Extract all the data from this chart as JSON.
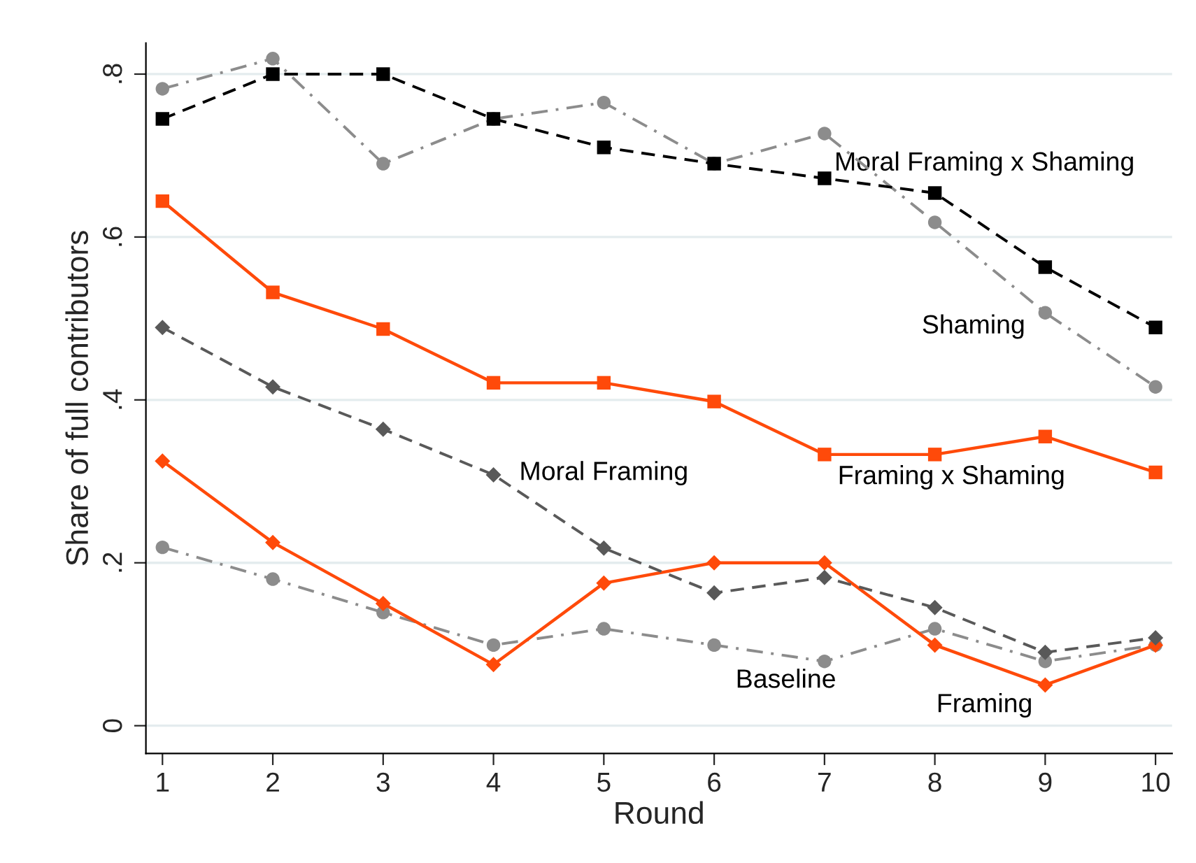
{
  "chart_data": {
    "type": "line",
    "xlabel": "Round",
    "ylabel": "Share of full contributors",
    "x": [
      1,
      2,
      3,
      4,
      5,
      6,
      7,
      8,
      9,
      10
    ],
    "xlim": [
      0.85,
      10.15
    ],
    "xticks": [
      1,
      2,
      3,
      4,
      5,
      6,
      7,
      8,
      9,
      10
    ],
    "ylim": [
      -0.034,
      0.838
    ],
    "yticks": [
      {
        "value": 0,
        "label": "0"
      },
      {
        "value": 0.2,
        "label": ".2"
      },
      {
        "value": 0.4,
        "label": ".4"
      },
      {
        "value": 0.6,
        "label": ".6"
      },
      {
        "value": 0.8,
        "label": ".8"
      }
    ],
    "grid": "y",
    "legend": false,
    "series": [
      {
        "name": "Moral Framing x Shaming",
        "color": "#000000",
        "marker": "square",
        "line_style": "dashed",
        "values": [
          0.745,
          0.8,
          0.8,
          0.745,
          0.71,
          0.69,
          0.672,
          0.654,
          0.563,
          0.489
        ]
      },
      {
        "name": "Shaming",
        "color": "#8c8c8c",
        "marker": "circle",
        "line_style": "dashdot",
        "values": [
          0.782,
          0.819,
          0.69,
          0.745,
          0.765,
          0.69,
          0.727,
          0.618,
          0.507,
          0.416
        ]
      },
      {
        "name": "Framing x Shaming",
        "color": "#ff4a0a",
        "marker": "square",
        "line_style": "solid",
        "values": [
          0.644,
          0.532,
          0.487,
          0.421,
          0.421,
          0.398,
          0.333,
          0.333,
          0.355,
          0.311
        ]
      },
      {
        "name": "Moral Framing",
        "color": "#595959",
        "marker": "diamond",
        "line_style": "dashed",
        "values": [
          0.489,
          0.416,
          0.364,
          0.308,
          0.218,
          0.163,
          0.182,
          0.145,
          0.09,
          0.108
        ]
      },
      {
        "name": "Framing",
        "color": "#ff4a0a",
        "marker": "diamond",
        "line_style": "solid",
        "values": [
          0.325,
          0.225,
          0.15,
          0.075,
          0.175,
          0.2,
          0.2,
          0.099,
          0.05,
          0.099
        ]
      },
      {
        "name": "Baseline",
        "color": "#8c8c8c",
        "marker": "circle",
        "line_style": "dashdot",
        "values": [
          0.219,
          0.18,
          0.139,
          0.099,
          0.119,
          0.099,
          0.079,
          0.119,
          0.079,
          0.099
        ]
      }
    ]
  }
}
